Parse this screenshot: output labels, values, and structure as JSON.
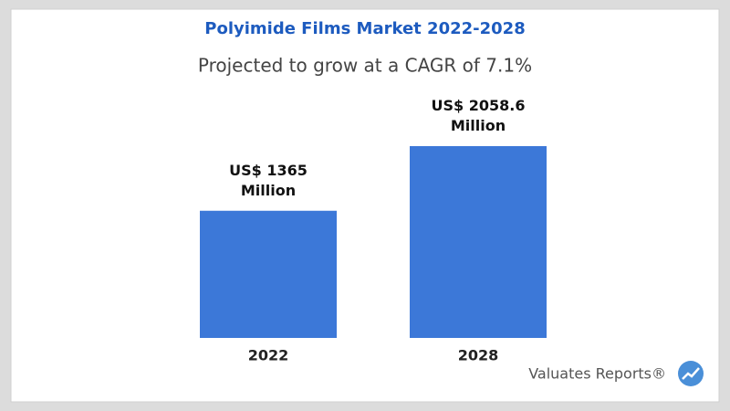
{
  "chart_data": {
    "type": "bar",
    "title": "Polyimide Films Market 2022-2028",
    "subtitle": "Projected to grow at a CAGR of 7.1%",
    "categories": [
      "2022",
      "2028"
    ],
    "values": [
      1365,
      2058.6
    ],
    "value_labels": [
      "US$ 1365 Million",
      "US$ 2058.6 Million"
    ],
    "color": "#3c78d8",
    "logo_text": "Valuates Reports®"
  }
}
